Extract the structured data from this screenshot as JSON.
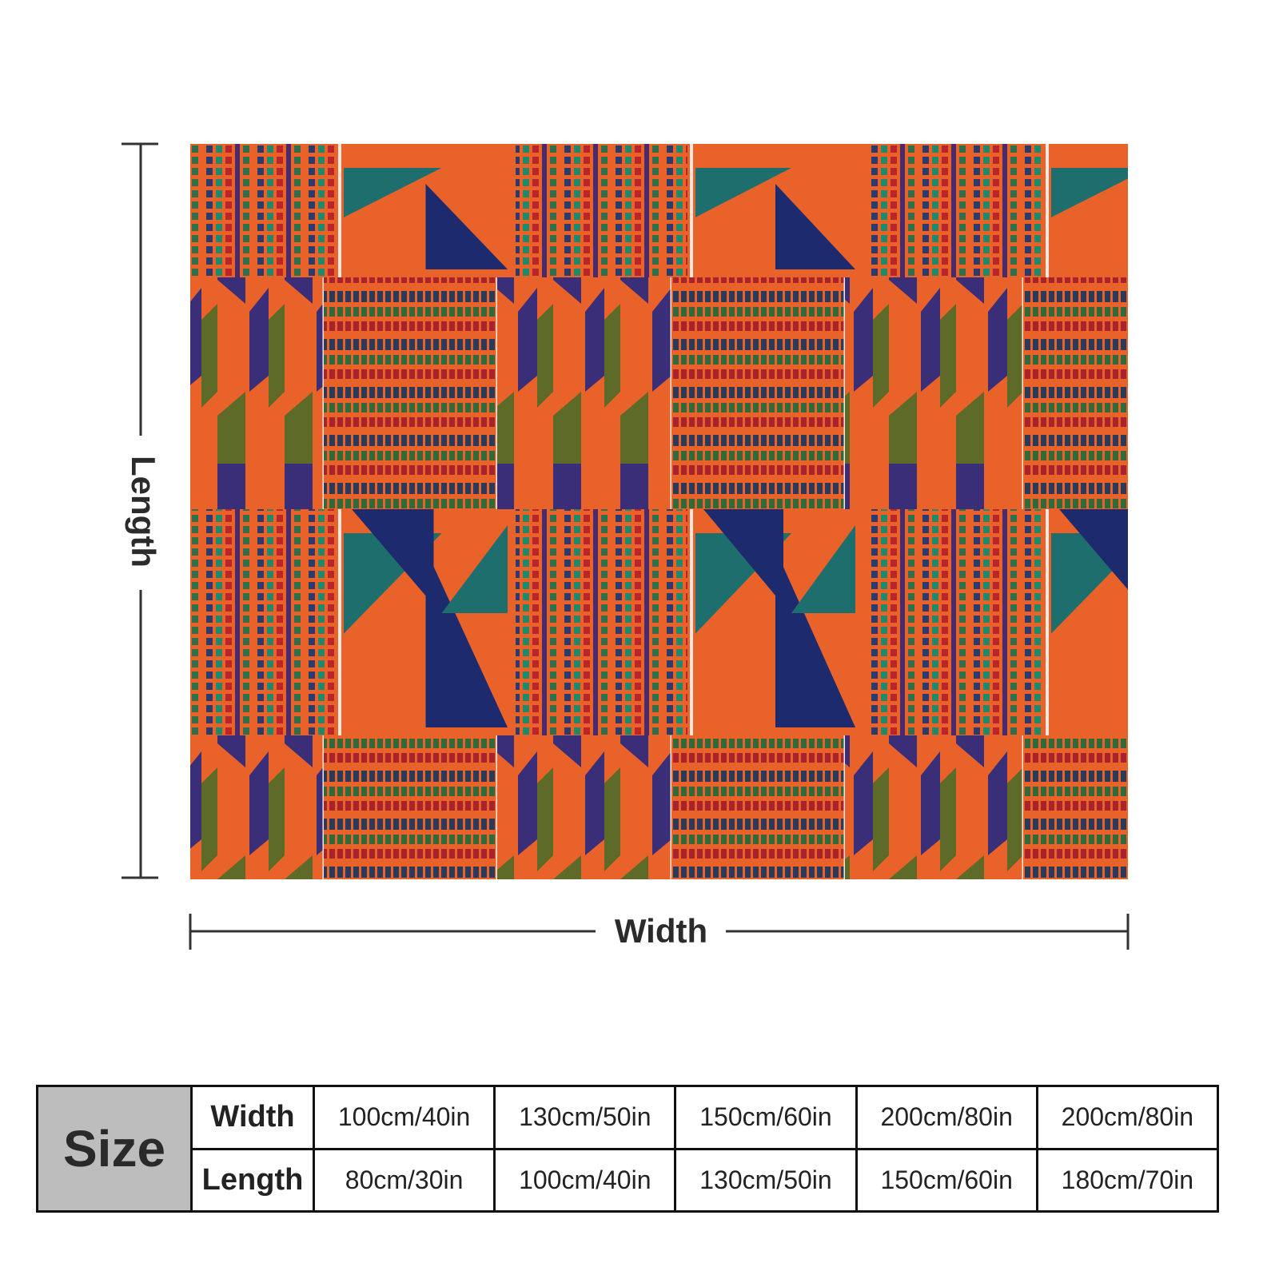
{
  "diagram": {
    "length_label": "Length",
    "width_label": "Width"
  },
  "table": {
    "corner": "Size",
    "rows": [
      [
        "Width",
        "100cm/40in",
        "130cm/50in",
        "150cm/60in",
        "200cm/80in",
        "200cm/80in"
      ],
      [
        "Length",
        "80cm/30in",
        "100cm/40in",
        "130cm/50in",
        "150cm/60in",
        "180cm/70in"
      ]
    ]
  }
}
